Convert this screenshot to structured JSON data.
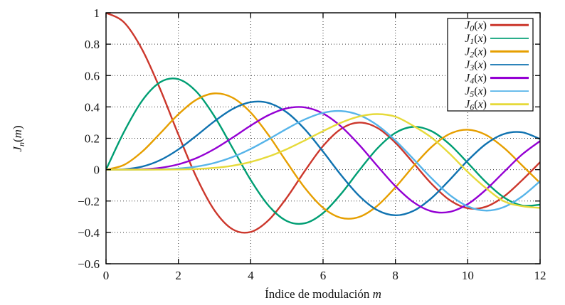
{
  "chart_data": {
    "type": "line",
    "title": "",
    "xlabel": {
      "text": "Índice de modulación ",
      "var": "m"
    },
    "ylabel": {
      "base": "J",
      "sub": "n",
      "open": "(",
      "var": "m",
      "close": ")"
    },
    "xlim": [
      0,
      12
    ],
    "ylim": [
      -0.6,
      1
    ],
    "xticks": [
      0,
      2,
      4,
      6,
      8,
      10,
      12
    ],
    "yticks": [
      1,
      0.8,
      0.6,
      0.4,
      0.2,
      0,
      -0.2,
      -0.4,
      -0.6
    ],
    "grid": "dotted",
    "legend_position": "top-right",
    "x_start": 0,
    "x_step": 0.5,
    "series": [
      {
        "label": {
          "base": "J",
          "sub": "0",
          "open": "(",
          "var": "x",
          "close": ")"
        },
        "color": "#cc372c",
        "values": [
          1,
          0.9385,
          0.7652,
          0.5118,
          0.2239,
          -0.0484,
          -0.2601,
          -0.3801,
          -0.3971,
          -0.3205,
          -0.1776,
          -0.0068,
          0.1506,
          0.2601,
          0.3001,
          0.2663,
          0.1717,
          0.0419,
          -0.0903,
          -0.1939,
          -0.2459,
          -0.2366,
          -0.1712,
          -0.0677,
          0.0477
        ]
      },
      {
        "label": {
          "base": "J",
          "sub": "1",
          "open": "(",
          "var": "x",
          "close": ")"
        },
        "color": "#009e73",
        "values": [
          0,
          0.2423,
          0.4401,
          0.5579,
          0.5767,
          0.4971,
          0.3391,
          0.1374,
          -0.066,
          -0.2311,
          -0.3276,
          -0.3414,
          -0.2767,
          -0.1538,
          -0.0047,
          0.1352,
          0.2346,
          0.2731,
          0.2453,
          0.1613,
          0.0435,
          -0.0789,
          -0.1768,
          -0.2284,
          -0.2234
        ]
      },
      {
        "label": {
          "base": "J",
          "sub": "2",
          "open": "(",
          "var": "x",
          "close": ")"
        },
        "color": "#e69f00",
        "values": [
          0,
          0.0306,
          0.1149,
          0.2321,
          0.3528,
          0.4461,
          0.4861,
          0.4586,
          0.3641,
          0.2178,
          0.0466,
          -0.1173,
          -0.2429,
          -0.3074,
          -0.3014,
          -0.2303,
          -0.113,
          0.0223,
          0.1448,
          0.2279,
          0.2546,
          0.2216,
          0.139,
          0.0279,
          -0.0849
        ]
      },
      {
        "label": {
          "base": "J",
          "sub": "3",
          "open": "(",
          "var": "x",
          "close": ")"
        },
        "color": "#0f72b0",
        "values": [
          0,
          0.0026,
          0.0196,
          0.061,
          0.1289,
          0.2166,
          0.3091,
          0.3868,
          0.4302,
          0.4247,
          0.3648,
          0.2561,
          0.1148,
          -0.0353,
          -0.1676,
          -0.2581,
          -0.2911,
          -0.2626,
          -0.1809,
          -0.0653,
          0.0584,
          0.1633,
          0.2273,
          0.2381,
          0.1951
        ]
      },
      {
        "label": {
          "base": "J",
          "sub": "4",
          "open": "(",
          "var": "x",
          "close": ")"
        },
        "color": "#9400d3",
        "values": [
          0,
          0.0002,
          0.0025,
          0.0118,
          0.034,
          0.0738,
          0.132,
          0.2044,
          0.2811,
          0.3484,
          0.3912,
          0.3967,
          0.3576,
          0.2748,
          0.1578,
          0.0238,
          -0.1054,
          -0.2077,
          -0.2655,
          -0.2691,
          -0.2196,
          -0.1283,
          -0.015,
          0.0963,
          0.1825
        ]
      },
      {
        "label": {
          "base": "J",
          "sub": "5",
          "open": "(",
          "var": "x",
          "close": ")"
        },
        "color": "#56b4e9",
        "values": [
          0,
          0,
          0.0002,
          0.0018,
          0.007,
          0.0195,
          0.043,
          0.0804,
          0.1321,
          0.1947,
          0.2611,
          0.3209,
          0.3621,
          0.3736,
          0.3479,
          0.2833,
          0.1858,
          0.0671,
          -0.055,
          -0.1613,
          -0.2341,
          -0.2611,
          -0.2383,
          -0.1711,
          -0.0735
        ]
      },
      {
        "label": {
          "base": "J",
          "sub": "6",
          "open": "(",
          "var": "x",
          "close": ")"
        },
        "color": "#e6da3a",
        "values": [
          0,
          0,
          0,
          0.0002,
          0.0012,
          0.0042,
          0.0114,
          0.0254,
          0.0491,
          0.0843,
          0.131,
          0.1868,
          0.2458,
          0.2999,
          0.3392,
          0.3541,
          0.3376,
          0.2786,
          0.2043,
          0.1018,
          -0.0145,
          -0.1172,
          -0.2016,
          -0.2326,
          -0.2437
        ]
      }
    ]
  }
}
